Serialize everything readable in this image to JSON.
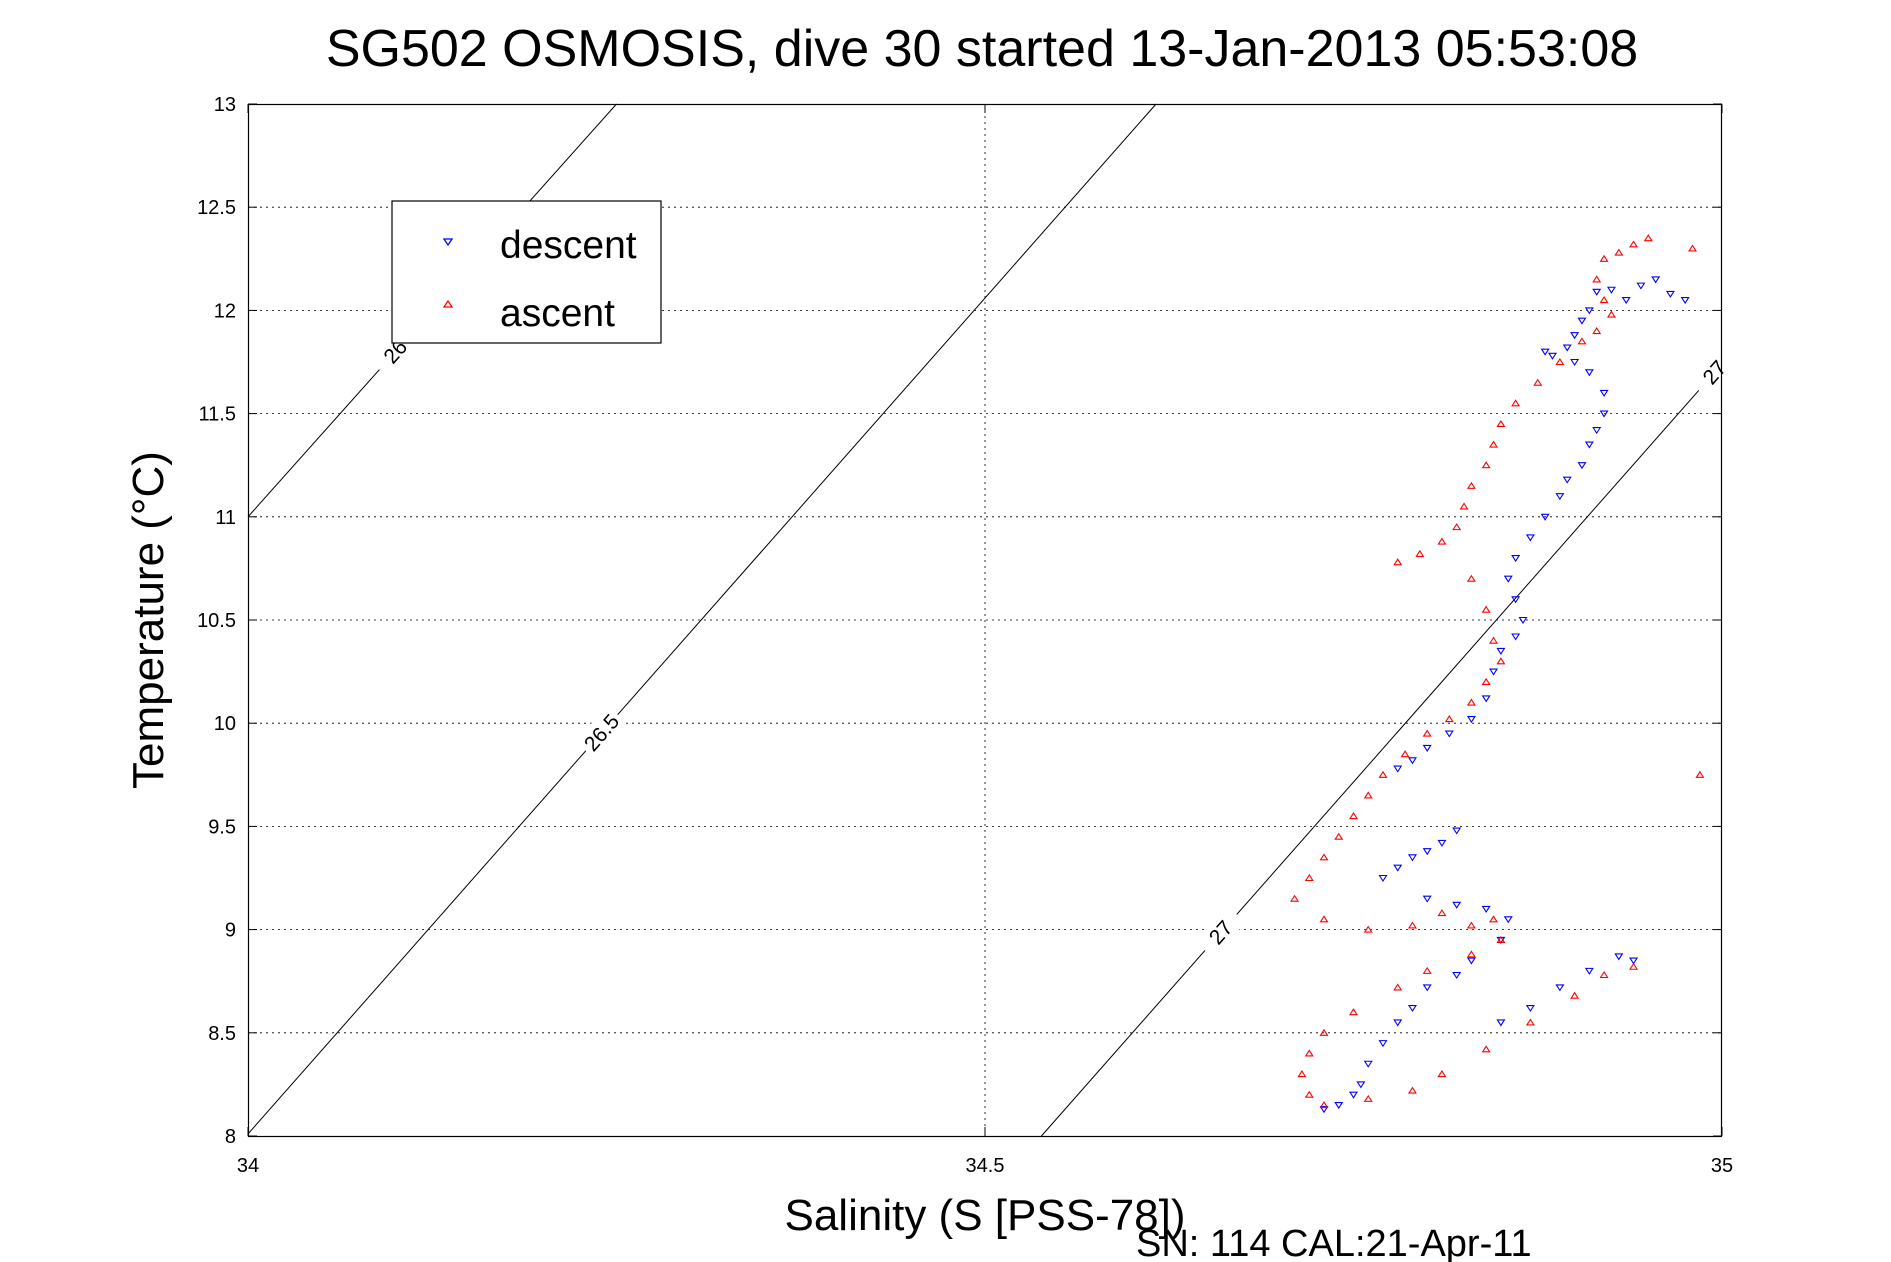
{
  "chart_data": {
    "type": "scatter",
    "title": "SG502 OSMOSIS, dive 30 started 13-Jan-2013 05:53:08",
    "xlabel": "Salinity (S [PSS-78])",
    "ylabel": "Temperature (°C)",
    "footer": "SN: 114  CAL:21-Apr-11",
    "xlim": [
      34,
      35
    ],
    "ylim": [
      8,
      13
    ],
    "xticks": [
      "34",
      "34.5",
      "35"
    ],
    "yticks": [
      "8",
      "8.5",
      "9",
      "9.5",
      "10",
      "10.5",
      "11",
      "11.5",
      "12",
      "12.5",
      "13"
    ],
    "grid": true,
    "legend_position": "top-left",
    "density_contours": [
      {
        "value": "26",
        "labels": [
          "26",
          "26"
        ]
      },
      {
        "value": "26.5",
        "labels": [
          "26.5",
          "26.5",
          "26.5",
          "26.5"
        ]
      },
      {
        "value": "27",
        "labels": [
          "27",
          "27"
        ]
      }
    ],
    "series": [
      {
        "name": "descent",
        "color": "#0000ff",
        "marker": "triangle-down",
        "points": [
          [
            34.975,
            12.05
          ],
          [
            34.965,
            12.08
          ],
          [
            34.955,
            12.15
          ],
          [
            34.945,
            12.12
          ],
          [
            34.935,
            12.05
          ],
          [
            34.925,
            12.1
          ],
          [
            34.915,
            12.09
          ],
          [
            34.91,
            12.0
          ],
          [
            34.905,
            11.95
          ],
          [
            34.9,
            11.88
          ],
          [
            34.895,
            11.82
          ],
          [
            34.885,
            11.78
          ],
          [
            34.88,
            11.8
          ],
          [
            34.9,
            11.75
          ],
          [
            34.91,
            11.7
          ],
          [
            34.92,
            11.6
          ],
          [
            34.92,
            11.5
          ],
          [
            34.915,
            11.42
          ],
          [
            34.91,
            11.35
          ],
          [
            34.905,
            11.25
          ],
          [
            34.895,
            11.18
          ],
          [
            34.89,
            11.1
          ],
          [
            34.88,
            11.0
          ],
          [
            34.87,
            10.9
          ],
          [
            34.86,
            10.8
          ],
          [
            34.855,
            10.7
          ],
          [
            34.86,
            10.6
          ],
          [
            34.865,
            10.5
          ],
          [
            34.86,
            10.42
          ],
          [
            34.85,
            10.35
          ],
          [
            34.845,
            10.25
          ],
          [
            34.84,
            10.12
          ],
          [
            34.83,
            10.02
          ],
          [
            34.815,
            9.95
          ],
          [
            34.8,
            9.88
          ],
          [
            34.79,
            9.82
          ],
          [
            34.78,
            9.78
          ],
          [
            34.82,
            9.48
          ],
          [
            34.81,
            9.42
          ],
          [
            34.8,
            9.38
          ],
          [
            34.79,
            9.35
          ],
          [
            34.78,
            9.3
          ],
          [
            34.77,
            9.25
          ],
          [
            34.8,
            9.15
          ],
          [
            34.82,
            9.12
          ],
          [
            34.84,
            9.1
          ],
          [
            34.855,
            9.05
          ],
          [
            34.85,
            8.95
          ],
          [
            34.83,
            8.85
          ],
          [
            34.82,
            8.78
          ],
          [
            34.8,
            8.72
          ],
          [
            34.79,
            8.62
          ],
          [
            34.78,
            8.55
          ],
          [
            34.77,
            8.45
          ],
          [
            34.76,
            8.35
          ],
          [
            34.755,
            8.25
          ],
          [
            34.75,
            8.2
          ],
          [
            34.74,
            8.15
          ],
          [
            34.73,
            8.13
          ],
          [
            34.85,
            8.55
          ],
          [
            34.87,
            8.62
          ],
          [
            34.89,
            8.72
          ],
          [
            34.91,
            8.8
          ],
          [
            34.93,
            8.87
          ],
          [
            34.94,
            8.85
          ]
        ]
      },
      {
        "name": "ascent",
        "color": "#ff0000",
        "marker": "triangle-up",
        "points": [
          [
            34.95,
            12.35
          ],
          [
            34.94,
            12.32
          ],
          [
            34.93,
            12.28
          ],
          [
            34.92,
            12.25
          ],
          [
            34.915,
            12.15
          ],
          [
            34.92,
            12.05
          ],
          [
            34.925,
            11.98
          ],
          [
            34.915,
            11.9
          ],
          [
            34.905,
            11.85
          ],
          [
            34.89,
            11.75
          ],
          [
            34.875,
            11.65
          ],
          [
            34.86,
            11.55
          ],
          [
            34.85,
            11.45
          ],
          [
            34.845,
            11.35
          ],
          [
            34.84,
            11.25
          ],
          [
            34.83,
            11.15
          ],
          [
            34.825,
            11.05
          ],
          [
            34.82,
            10.95
          ],
          [
            34.81,
            10.88
          ],
          [
            34.795,
            10.82
          ],
          [
            34.78,
            10.78
          ],
          [
            34.83,
            10.7
          ],
          [
            34.84,
            10.55
          ],
          [
            34.845,
            10.4
          ],
          [
            34.85,
            10.3
          ],
          [
            34.84,
            10.2
          ],
          [
            34.83,
            10.1
          ],
          [
            34.815,
            10.02
          ],
          [
            34.8,
            9.95
          ],
          [
            34.785,
            9.85
          ],
          [
            34.77,
            9.75
          ],
          [
            34.76,
            9.65
          ],
          [
            34.75,
            9.55
          ],
          [
            34.74,
            9.45
          ],
          [
            34.73,
            9.35
          ],
          [
            34.72,
            9.25
          ],
          [
            34.71,
            9.15
          ],
          [
            34.73,
            9.05
          ],
          [
            34.76,
            9.0
          ],
          [
            34.79,
            9.02
          ],
          [
            34.81,
            9.08
          ],
          [
            34.83,
            9.02
          ],
          [
            34.845,
            9.05
          ],
          [
            34.85,
            8.95
          ],
          [
            34.83,
            8.88
          ],
          [
            34.8,
            8.8
          ],
          [
            34.78,
            8.72
          ],
          [
            34.75,
            8.6
          ],
          [
            34.73,
            8.5
          ],
          [
            34.72,
            8.4
          ],
          [
            34.715,
            8.3
          ],
          [
            34.72,
            8.2
          ],
          [
            34.73,
            8.15
          ],
          [
            34.76,
            8.18
          ],
          [
            34.79,
            8.22
          ],
          [
            34.81,
            8.3
          ],
          [
            34.84,
            8.42
          ],
          [
            34.87,
            8.55
          ],
          [
            34.9,
            8.68
          ],
          [
            34.92,
            8.78
          ],
          [
            34.94,
            8.82
          ],
          [
            34.985,
            9.75
          ],
          [
            34.98,
            12.3
          ]
        ]
      }
    ]
  }
}
